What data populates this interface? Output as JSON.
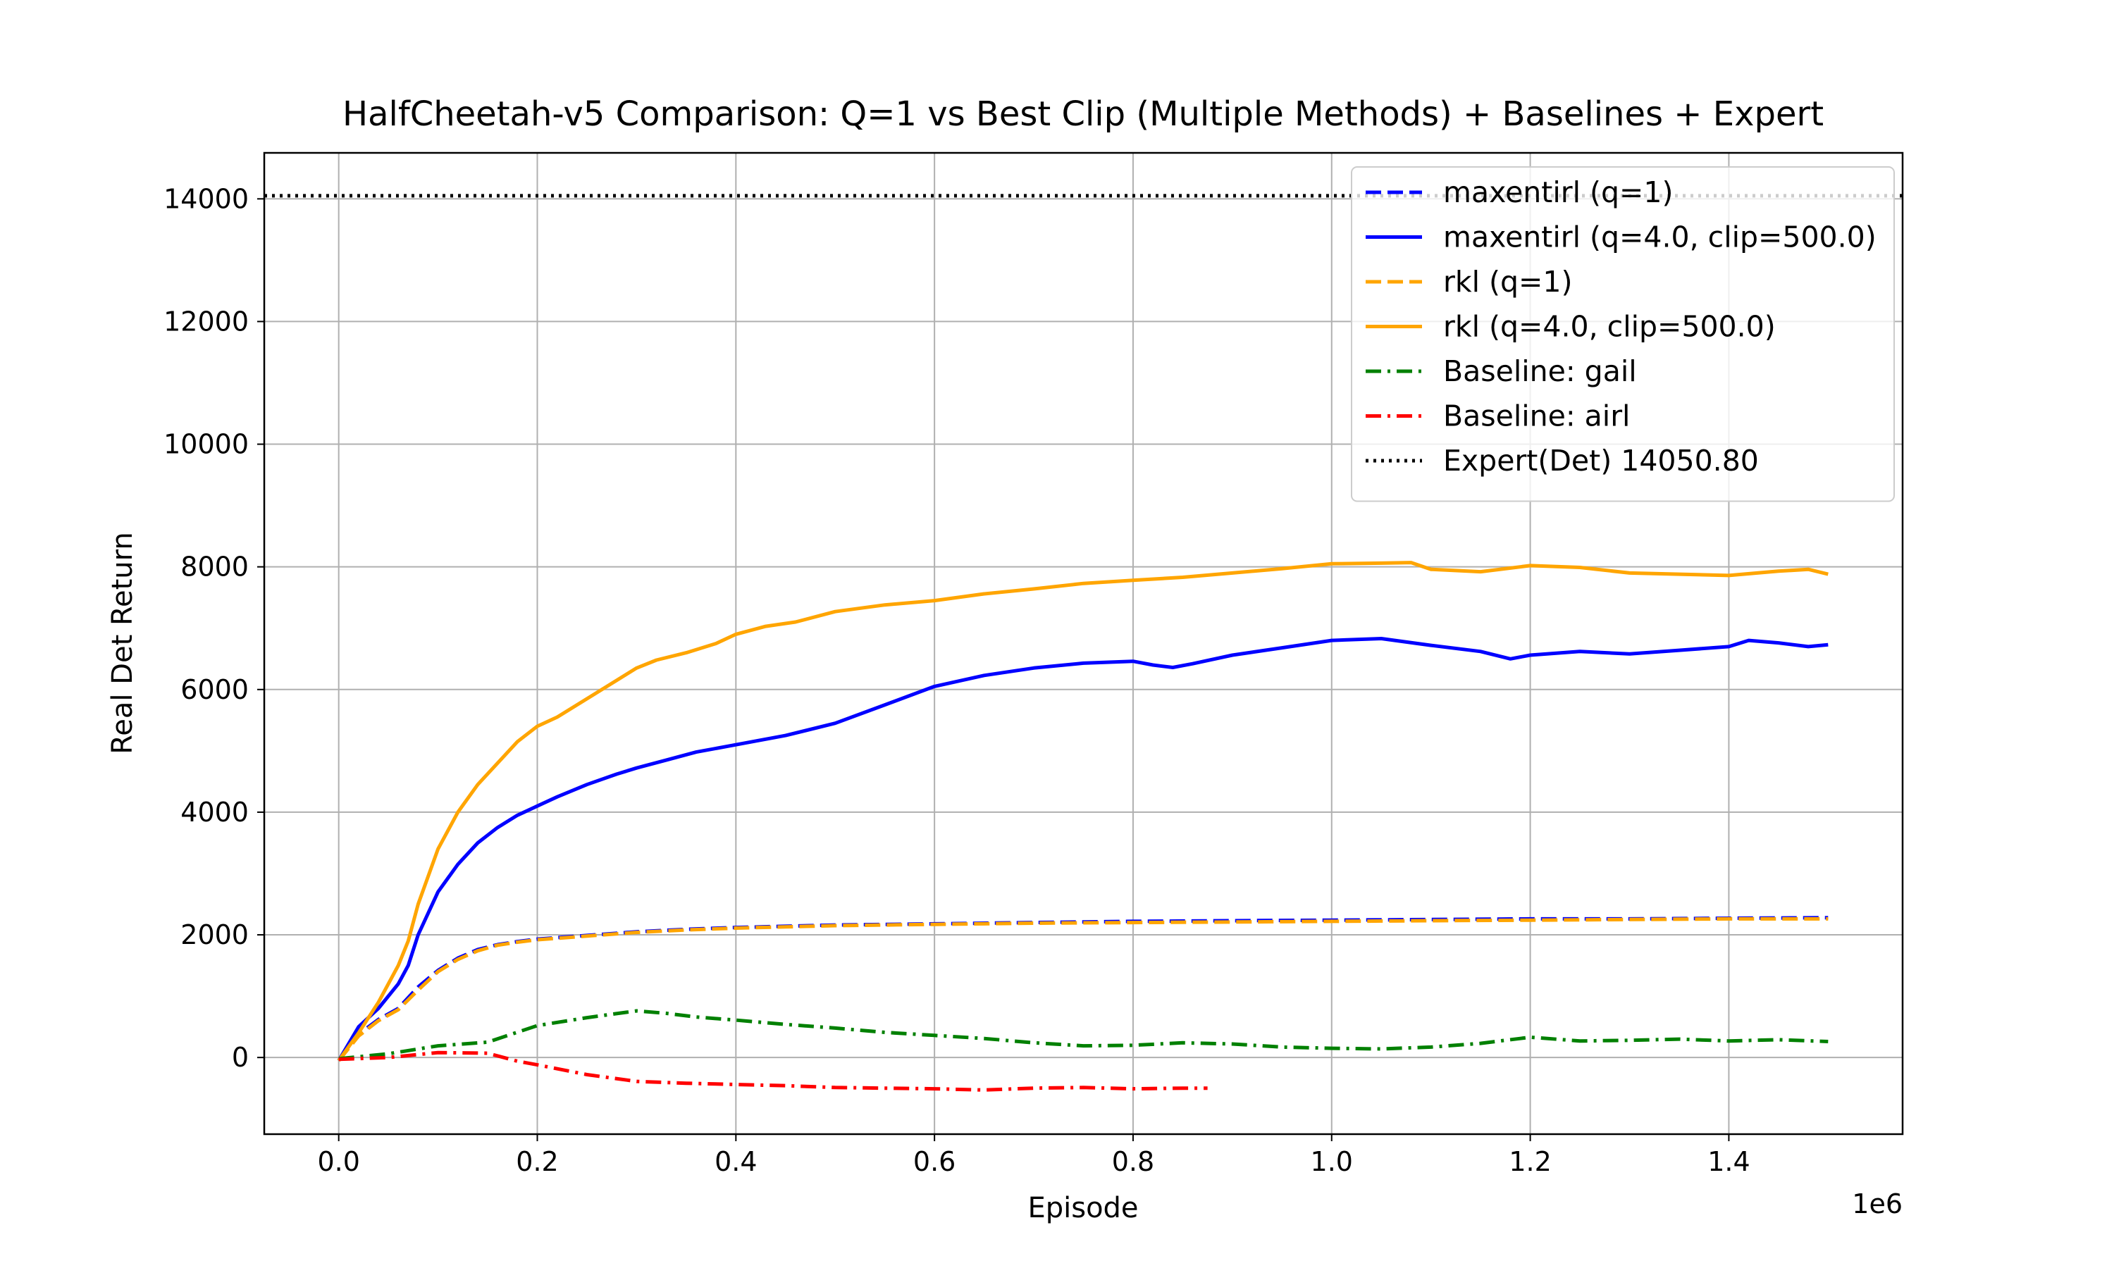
{
  "chart_data": {
    "type": "line",
    "title": "HalfCheetah-v5 Comparison: Q=1 vs Best Clip (Multiple Methods) + Baselines + Expert",
    "xlabel": "Episode",
    "ylabel": "Real Det Return",
    "x_offset_label": "1e6",
    "xlim": [
      -0.075,
      1.575
    ],
    "ylim": [
      -1250,
      14750
    ],
    "xticks": [
      0.0,
      0.2,
      0.4,
      0.6,
      0.8,
      1.0,
      1.2,
      1.4
    ],
    "xtick_labels": [
      "0.0",
      "0.2",
      "0.4",
      "0.6",
      "0.8",
      "1.0",
      "1.2",
      "1.4"
    ],
    "yticks": [
      0,
      2000,
      4000,
      6000,
      8000,
      10000,
      12000,
      14000
    ],
    "ytick_labels": [
      "0",
      "2000",
      "4000",
      "6000",
      "8000",
      "10000",
      "12000",
      "14000"
    ],
    "grid": true,
    "legend_position": "top-right",
    "series": [
      {
        "name": "maxentirl (q=1)",
        "color": "#0000ff",
        "style": "dashed",
        "points": [
          [
            0.0,
            -50
          ],
          [
            0.02,
            380
          ],
          [
            0.04,
            620
          ],
          [
            0.06,
            800
          ],
          [
            0.08,
            1150
          ],
          [
            0.1,
            1420
          ],
          [
            0.12,
            1620
          ],
          [
            0.14,
            1760
          ],
          [
            0.16,
            1840
          ],
          [
            0.18,
            1890
          ],
          [
            0.2,
            1930
          ],
          [
            0.25,
            1990
          ],
          [
            0.3,
            2050
          ],
          [
            0.35,
            2090
          ],
          [
            0.4,
            2120
          ],
          [
            0.5,
            2160
          ],
          [
            0.6,
            2180
          ],
          [
            0.7,
            2200
          ],
          [
            0.8,
            2220
          ],
          [
            0.9,
            2230
          ],
          [
            1.0,
            2240
          ],
          [
            1.1,
            2250
          ],
          [
            1.2,
            2260
          ],
          [
            1.3,
            2260
          ],
          [
            1.4,
            2270
          ],
          [
            1.5,
            2280
          ]
        ]
      },
      {
        "name": "maxentirl (q=4.0, clip=500.0)",
        "color": "#0000ff",
        "style": "solid",
        "points": [
          [
            0.0,
            -50
          ],
          [
            0.02,
            500
          ],
          [
            0.04,
            800
          ],
          [
            0.06,
            1200
          ],
          [
            0.07,
            1500
          ],
          [
            0.08,
            2000
          ],
          [
            0.1,
            2700
          ],
          [
            0.12,
            3150
          ],
          [
            0.14,
            3500
          ],
          [
            0.16,
            3750
          ],
          [
            0.18,
            3950
          ],
          [
            0.2,
            4100
          ],
          [
            0.22,
            4250
          ],
          [
            0.25,
            4450
          ],
          [
            0.28,
            4620
          ],
          [
            0.3,
            4720
          ],
          [
            0.33,
            4850
          ],
          [
            0.36,
            4980
          ],
          [
            0.4,
            5100
          ],
          [
            0.45,
            5250
          ],
          [
            0.5,
            5450
          ],
          [
            0.55,
            5750
          ],
          [
            0.6,
            6050
          ],
          [
            0.65,
            6230
          ],
          [
            0.7,
            6350
          ],
          [
            0.75,
            6430
          ],
          [
            0.8,
            6460
          ],
          [
            0.82,
            6400
          ],
          [
            0.84,
            6360
          ],
          [
            0.86,
            6420
          ],
          [
            0.9,
            6560
          ],
          [
            0.95,
            6680
          ],
          [
            1.0,
            6800
          ],
          [
            1.05,
            6830
          ],
          [
            1.1,
            6720
          ],
          [
            1.15,
            6620
          ],
          [
            1.18,
            6500
          ],
          [
            1.2,
            6560
          ],
          [
            1.25,
            6620
          ],
          [
            1.3,
            6580
          ],
          [
            1.35,
            6640
          ],
          [
            1.4,
            6700
          ],
          [
            1.42,
            6800
          ],
          [
            1.45,
            6760
          ],
          [
            1.48,
            6700
          ],
          [
            1.5,
            6730
          ]
        ]
      },
      {
        "name": "rkl (q=1)",
        "color": "#ffa500",
        "style": "dashed",
        "points": [
          [
            0.0,
            -50
          ],
          [
            0.02,
            350
          ],
          [
            0.04,
            600
          ],
          [
            0.06,
            780
          ],
          [
            0.08,
            1100
          ],
          [
            0.1,
            1400
          ],
          [
            0.12,
            1600
          ],
          [
            0.14,
            1740
          ],
          [
            0.16,
            1830
          ],
          [
            0.18,
            1880
          ],
          [
            0.2,
            1920
          ],
          [
            0.25,
            1980
          ],
          [
            0.3,
            2040
          ],
          [
            0.35,
            2080
          ],
          [
            0.4,
            2110
          ],
          [
            0.5,
            2150
          ],
          [
            0.6,
            2170
          ],
          [
            0.7,
            2190
          ],
          [
            0.8,
            2200
          ],
          [
            0.9,
            2210
          ],
          [
            1.0,
            2220
          ],
          [
            1.1,
            2230
          ],
          [
            1.2,
            2240
          ],
          [
            1.3,
            2250
          ],
          [
            1.4,
            2260
          ],
          [
            1.5,
            2260
          ]
        ]
      },
      {
        "name": "rkl (q=4.0, clip=500.0)",
        "color": "#ffa500",
        "style": "solid",
        "points": [
          [
            0.0,
            -50
          ],
          [
            0.02,
            400
          ],
          [
            0.04,
            900
          ],
          [
            0.06,
            1500
          ],
          [
            0.07,
            1900
          ],
          [
            0.08,
            2500
          ],
          [
            0.1,
            3400
          ],
          [
            0.12,
            4000
          ],
          [
            0.14,
            4450
          ],
          [
            0.16,
            4800
          ],
          [
            0.18,
            5150
          ],
          [
            0.2,
            5400
          ],
          [
            0.22,
            5550
          ],
          [
            0.25,
            5850
          ],
          [
            0.28,
            6150
          ],
          [
            0.3,
            6350
          ],
          [
            0.32,
            6480
          ],
          [
            0.35,
            6600
          ],
          [
            0.38,
            6750
          ],
          [
            0.4,
            6900
          ],
          [
            0.43,
            7030
          ],
          [
            0.46,
            7100
          ],
          [
            0.5,
            7270
          ],
          [
            0.55,
            7380
          ],
          [
            0.6,
            7450
          ],
          [
            0.65,
            7560
          ],
          [
            0.7,
            7640
          ],
          [
            0.75,
            7730
          ],
          [
            0.8,
            7780
          ],
          [
            0.85,
            7830
          ],
          [
            0.9,
            7900
          ],
          [
            0.95,
            7970
          ],
          [
            1.0,
            8050
          ],
          [
            1.05,
            8060
          ],
          [
            1.08,
            8070
          ],
          [
            1.1,
            7960
          ],
          [
            1.15,
            7920
          ],
          [
            1.2,
            8020
          ],
          [
            1.25,
            7990
          ],
          [
            1.3,
            7900
          ],
          [
            1.35,
            7880
          ],
          [
            1.4,
            7860
          ],
          [
            1.45,
            7930
          ],
          [
            1.48,
            7960
          ],
          [
            1.5,
            7880
          ]
        ]
      },
      {
        "name": "Baseline: gail",
        "color": "#008000",
        "style": "dashdot",
        "points": [
          [
            0.0,
            -20
          ],
          [
            0.05,
            60
          ],
          [
            0.1,
            190
          ],
          [
            0.15,
            250
          ],
          [
            0.2,
            520
          ],
          [
            0.25,
            650
          ],
          [
            0.3,
            760
          ],
          [
            0.33,
            720
          ],
          [
            0.36,
            660
          ],
          [
            0.4,
            610
          ],
          [
            0.45,
            540
          ],
          [
            0.5,
            480
          ],
          [
            0.55,
            410
          ],
          [
            0.6,
            360
          ],
          [
            0.65,
            310
          ],
          [
            0.7,
            240
          ],
          [
            0.75,
            190
          ],
          [
            0.8,
            200
          ],
          [
            0.85,
            240
          ],
          [
            0.9,
            220
          ],
          [
            0.95,
            170
          ],
          [
            1.0,
            150
          ],
          [
            1.05,
            140
          ],
          [
            1.1,
            170
          ],
          [
            1.15,
            230
          ],
          [
            1.2,
            330
          ],
          [
            1.25,
            270
          ],
          [
            1.3,
            280
          ],
          [
            1.35,
            300
          ],
          [
            1.4,
            270
          ],
          [
            1.45,
            290
          ],
          [
            1.5,
            260
          ]
        ]
      },
      {
        "name": "Baseline: airl",
        "color": "#ff0000",
        "style": "dashdot",
        "points": [
          [
            0.0,
            -30
          ],
          [
            0.05,
            0
          ],
          [
            0.1,
            80
          ],
          [
            0.15,
            70
          ],
          [
            0.18,
            -60
          ],
          [
            0.2,
            -120
          ],
          [
            0.25,
            -280
          ],
          [
            0.3,
            -390
          ],
          [
            0.35,
            -420
          ],
          [
            0.4,
            -440
          ],
          [
            0.45,
            -460
          ],
          [
            0.5,
            -490
          ],
          [
            0.55,
            -500
          ],
          [
            0.6,
            -510
          ],
          [
            0.65,
            -530
          ],
          [
            0.7,
            -500
          ],
          [
            0.75,
            -490
          ],
          [
            0.8,
            -510
          ],
          [
            0.85,
            -500
          ],
          [
            0.875,
            -500
          ]
        ]
      }
    ],
    "reference_lines": [
      {
        "name": "Expert(Det) 14050.80",
        "y": 14050.8,
        "color": "#000000",
        "style": "dotted"
      }
    ]
  }
}
